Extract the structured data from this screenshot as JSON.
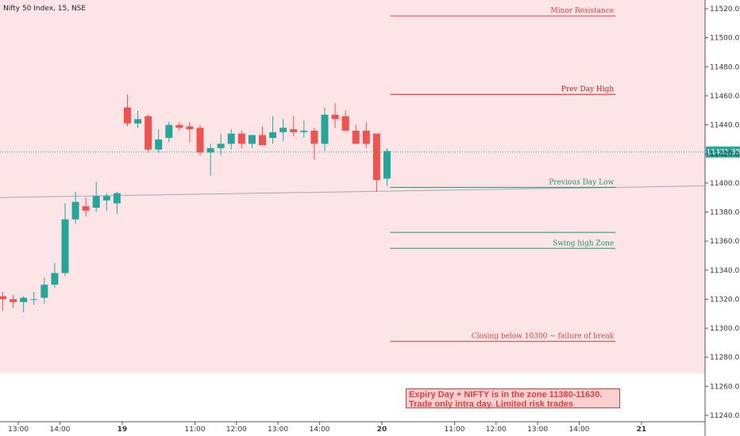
{
  "chart_data": {
    "type": "candlestick",
    "title": "Nifty 50 Index, 15, NSE",
    "ylim": [
      11234,
      11526
    ],
    "y_ticks": [
      11240,
      11260,
      11280,
      11300,
      11320,
      11340,
      11360,
      11380,
      11400,
      11420,
      11440,
      11460,
      11480,
      11500,
      11520
    ],
    "y_tick_labels": [
      "11240.00",
      "11260.00",
      "11280.00",
      "11300.00",
      "11320.00",
      "11340.00",
      "11360.00",
      "11380.00",
      "11400.00",
      "11420.00",
      "11440.00",
      "11460.00",
      "11480.00",
      "11500.00",
      "11520.00"
    ],
    "x_ticks": [
      {
        "bar": 1.5,
        "label": "13:00",
        "bold": false
      },
      {
        "bar": 5.5,
        "label": "14:00",
        "bold": false
      },
      {
        "bar": 11.5,
        "label": "19",
        "bold": true
      },
      {
        "bar": 18.5,
        "label": "11:00",
        "bold": false
      },
      {
        "bar": 22.5,
        "label": "12:00",
        "bold": false
      },
      {
        "bar": 26.5,
        "label": "13:00",
        "bold": false
      },
      {
        "bar": 30.5,
        "label": "14:00",
        "bold": false
      },
      {
        "bar": 36.5,
        "label": "20",
        "bold": true
      },
      {
        "bar": 43.5,
        "label": "11:00",
        "bold": false
      },
      {
        "bar": 47.5,
        "label": "12:00",
        "bold": false
      },
      {
        "bar": 51.5,
        "label": "13:00",
        "bold": false
      },
      {
        "bar": 55.5,
        "label": "14:00",
        "bold": false
      },
      {
        "bar": 61.5,
        "label": "21",
        "bold": true
      }
    ],
    "candles": [
      {
        "o": 11322,
        "h": 11325,
        "l": 11312,
        "c": 11320
      },
      {
        "o": 11320,
        "h": 11323,
        "l": 11314,
        "c": 11318
      },
      {
        "o": 11318,
        "h": 11322,
        "l": 11311,
        "c": 11321
      },
      {
        "o": 11320,
        "h": 11325,
        "l": 11316,
        "c": 11320
      },
      {
        "o": 11321,
        "h": 11335,
        "l": 11317,
        "c": 11330
      },
      {
        "o": 11330,
        "h": 11345,
        "l": 11328,
        "c": 11338
      },
      {
        "o": 11338,
        "h": 11386,
        "l": 11336,
        "c": 11375
      },
      {
        "o": 11375,
        "h": 11394,
        "l": 11372,
        "c": 11387
      },
      {
        "o": 11384,
        "h": 11390,
        "l": 11377,
        "c": 11381
      },
      {
        "o": 11383,
        "h": 11401,
        "l": 11380,
        "c": 11391
      },
      {
        "o": 11388,
        "h": 11393,
        "l": 11381,
        "c": 11391
      },
      {
        "o": 11386,
        "h": 11394,
        "l": 11379,
        "c": 11393
      },
      {
        "o": 11452,
        "h": 11461,
        "l": 11439,
        "c": 11441
      },
      {
        "o": 11441,
        "h": 11450,
        "l": 11438,
        "c": 11444
      },
      {
        "o": 11446,
        "h": 11447,
        "l": 11421,
        "c": 11423
      },
      {
        "o": 11423,
        "h": 11437,
        "l": 11421,
        "c": 11430
      },
      {
        "o": 11431,
        "h": 11442,
        "l": 11428,
        "c": 11440
      },
      {
        "o": 11440,
        "h": 11442,
        "l": 11436,
        "c": 11438
      },
      {
        "o": 11439,
        "h": 11442,
        "l": 11428,
        "c": 11437
      },
      {
        "o": 11438,
        "h": 11440,
        "l": 11419,
        "c": 11421
      },
      {
        "o": 11421,
        "h": 11427,
        "l": 11405,
        "c": 11424
      },
      {
        "o": 11424,
        "h": 11434,
        "l": 11419,
        "c": 11427
      },
      {
        "o": 11427,
        "h": 11437,
        "l": 11423,
        "c": 11434
      },
      {
        "o": 11434,
        "h": 11436,
        "l": 11424,
        "c": 11427
      },
      {
        "o": 11427,
        "h": 11433,
        "l": 11424,
        "c": 11433
      },
      {
        "o": 11433,
        "h": 11439,
        "l": 11426,
        "c": 11426
      },
      {
        "o": 11431,
        "h": 11446,
        "l": 11427,
        "c": 11435
      },
      {
        "o": 11435,
        "h": 11444,
        "l": 11429,
        "c": 11438
      },
      {
        "o": 11437,
        "h": 11446,
        "l": 11432,
        "c": 11435
      },
      {
        "o": 11435,
        "h": 11443,
        "l": 11431,
        "c": 11436
      },
      {
        "o": 11436,
        "h": 11438,
        "l": 11416,
        "c": 11427
      },
      {
        "o": 11427,
        "h": 11452,
        "l": 11422,
        "c": 11447
      },
      {
        "o": 11447,
        "h": 11455,
        "l": 11438,
        "c": 11444
      },
      {
        "o": 11446,
        "h": 11450,
        "l": 11436,
        "c": 11436
      },
      {
        "o": 11436,
        "h": 11440,
        "l": 11427,
        "c": 11427
      },
      {
        "o": 11436,
        "h": 11442,
        "l": 11424,
        "c": 11427
      },
      {
        "o": 11434,
        "h": 11434,
        "l": 11394,
        "c": 11402
      },
      {
        "o": 11403,
        "h": 11424,
        "l": 11398,
        "c": 11422
      }
    ],
    "last_price": 11421.35,
    "last_price_label": "11421.35",
    "shaded_zone": {
      "y1": 11269,
      "y2": 11526,
      "color": "#fde4e6"
    },
    "trendline": {
      "x1_bar": -0.8,
      "y1": 11390,
      "x2_bar": 67.6,
      "y2": 11398,
      "color": "#9fa8bd"
    },
    "annotations": [
      {
        "text": "Minor Resistance",
        "y": 11515,
        "x1_bar": 37.3,
        "x2_bar": 59,
        "color": "#e04040"
      },
      {
        "text": "Prev Day High",
        "y": 11461,
        "x1_bar": 37.3,
        "x2_bar": 59,
        "color": "#cc1f1f"
      },
      {
        "text": "Previous Day Low",
        "y": 11397,
        "x1_bar": 37.3,
        "x2_bar": 59,
        "color": "#1f8f6a"
      },
      {
        "text": "",
        "y": 11366,
        "x1_bar": 37.3,
        "x2_bar": 59,
        "color": "#1f8f6a"
      },
      {
        "text": "Swing high Zone",
        "y": 11355,
        "x1_bar": 37.3,
        "x2_bar": 59,
        "color": "#1f8f6a"
      },
      {
        "text": "Closing below 10300 ~ failure of break",
        "y": 11291,
        "x1_bar": 37.3,
        "x2_bar": 59,
        "color": "#e04040"
      }
    ],
    "note": "Expiry Day + NIFTY is in the zone 11380-11630. Trade only intra day. Limited risk trades",
    "colors": {
      "up": "#26a69a",
      "down": "#ef5350",
      "axis": "#555555",
      "last_price": "#26a69a"
    }
  }
}
